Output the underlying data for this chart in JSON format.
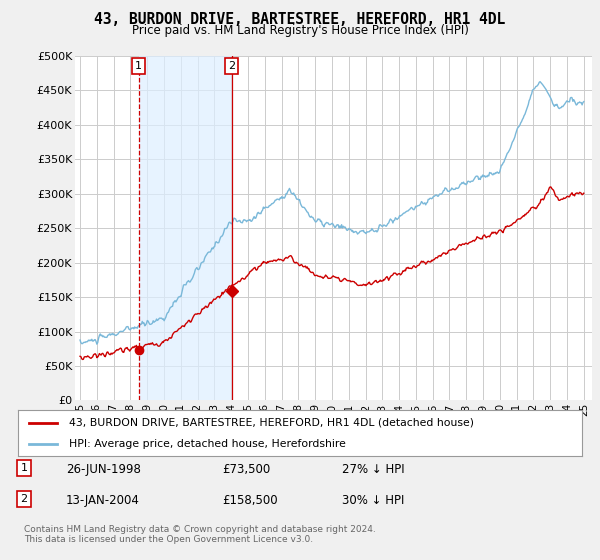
{
  "title": "43, BURDON DRIVE, BARTESTREE, HEREFORD, HR1 4DL",
  "subtitle": "Price paid vs. HM Land Registry's House Price Index (HPI)",
  "legend_line1": "43, BURDON DRIVE, BARTESTREE, HEREFORD, HR1 4DL (detached house)",
  "legend_line2": "HPI: Average price, detached house, Herefordshire",
  "footnote": "Contains HM Land Registry data © Crown copyright and database right 2024.\nThis data is licensed under the Open Government Licence v3.0.",
  "sale1_date": "26-JUN-1998",
  "sale1_price": "£73,500",
  "sale1_hpi": "27% ↓ HPI",
  "sale2_date": "13-JAN-2004",
  "sale2_price": "£158,500",
  "sale2_hpi": "30% ↓ HPI",
  "hpi_color": "#7ab8d9",
  "price_color": "#cc0000",
  "shade_color": "#ddeeff",
  "marker1_x": 1998.49,
  "marker1_y": 73500,
  "marker2_x": 2004.04,
  "marker2_y": 158500,
  "ylim": [
    0,
    500000
  ],
  "xlim": [
    1994.7,
    2025.5
  ],
  "yticks": [
    0,
    50000,
    100000,
    150000,
    200000,
    250000,
    300000,
    350000,
    400000,
    450000,
    500000
  ],
  "ytick_labels": [
    "£0",
    "£50K",
    "£100K",
    "£150K",
    "£200K",
    "£250K",
    "£300K",
    "£350K",
    "£400K",
    "£450K",
    "£500K"
  ],
  "background_color": "#f0f0f0",
  "plot_bg_color": "#ffffff"
}
